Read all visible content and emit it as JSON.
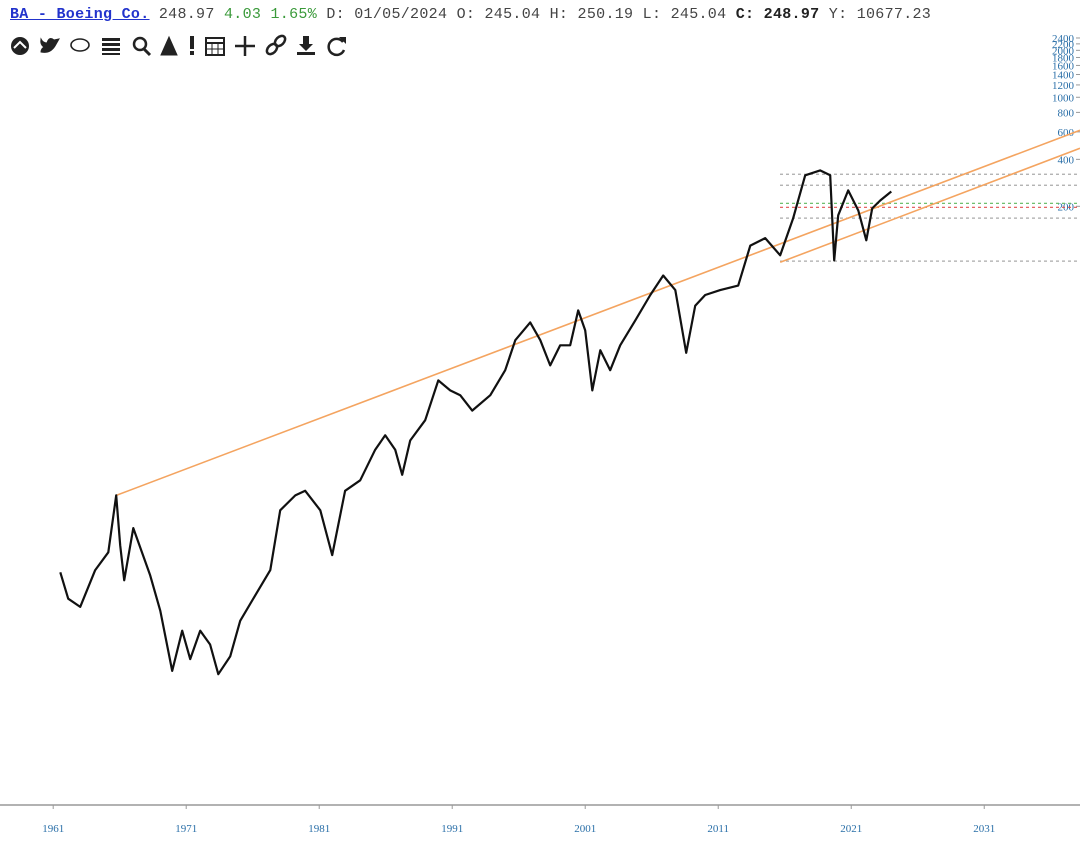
{
  "header": {
    "title": "BA - Boeing Co.",
    "price": "248.97",
    "change": "4.03",
    "change_percent": "1.65%",
    "fields": [
      {
        "label": "D:",
        "value": "01/05/2024"
      },
      {
        "label": "O:",
        "value": "245.04"
      },
      {
        "label": "H:",
        "value": "250.19"
      },
      {
        "label": "L:",
        "value": "245.04"
      },
      {
        "label": "C:",
        "value": "248.97"
      },
      {
        "label": "Y:",
        "value": "10677.23"
      }
    ]
  },
  "chart_data": {
    "type": "line",
    "log_scale_y": true,
    "xlim": [
      1957,
      2038.2
    ],
    "ylim": [
      0.029,
      2700
    ],
    "xticks": [
      1961,
      1971,
      1981,
      1991,
      2001,
      2011,
      2021,
      2031
    ],
    "yticks": [
      200,
      400,
      600,
      800,
      1000,
      1200,
      1400,
      1600,
      1800,
      2000,
      2200,
      2400
    ],
    "series": [
      {
        "color": "#111111",
        "x": [
          1961.53,
          1962.13,
          1963.03,
          1964.16,
          1965.14,
          1965.74,
          1966.04,
          1966.34,
          1967.02,
          1968.29,
          1969.05,
          1969.95,
          1970.7,
          1971.3,
          1972.05,
          1972.8,
          1973.41,
          1974.31,
          1975.06,
          1976.19,
          1977.32,
          1978.07,
          1979.2,
          1979.95,
          1981.08,
          1981.98,
          1982.95,
          1984.08,
          1985.21,
          1985.96,
          1986.71,
          1987.24,
          1987.84,
          1988.97,
          1989.95,
          1990.85,
          1991.6,
          1992.5,
          1993.86,
          1994.98,
          1995.74,
          1996.86,
          1997.62,
          1998.37,
          1999.12,
          1999.87,
          2000.47,
          2001.0,
          2001.53,
          2002.13,
          2002.88,
          2003.63,
          2004.76,
          2005.89,
          2006.86,
          2007.77,
          2008.59,
          2009.27,
          2010.02,
          2011.15,
          2012.5,
          2013.41,
          2014.53,
          2015.66,
          2016.64,
          2017.54,
          2018.66,
          2019.42,
          2019.72,
          2020.02,
          2020.77,
          2021.53,
          2022.13,
          2022.58,
          2023.18,
          2024.01
        ],
        "values": [
          0.9,
          0.61,
          0.54,
          0.93,
          1.21,
          2.8,
          1.34,
          0.8,
          1.73,
          0.86,
          0.51,
          0.21,
          0.38,
          0.25,
          0.38,
          0.31,
          0.2,
          0.26,
          0.44,
          0.64,
          0.93,
          2.25,
          2.8,
          3.0,
          2.25,
          1.16,
          3.0,
          3.5,
          5.5,
          6.8,
          5.5,
          3.8,
          6.3,
          8.5,
          15.3,
          13.2,
          12.3,
          9.8,
          12.3,
          17.8,
          27.7,
          36,
          27.7,
          19.1,
          25.7,
          25.7,
          43,
          32,
          13.2,
          23.9,
          17.8,
          25.7,
          37,
          54,
          72,
          58,
          23,
          46,
          54,
          58,
          62,
          112,
          125,
          97,
          168,
          316,
          340,
          316,
          90,
          175,
          253,
          188,
          121,
          194,
          218,
          248.97
        ]
      }
    ],
    "trendlines": [
      {
        "color": "#f4a460",
        "x": [
          1965.74,
          2038.2
        ],
        "values": [
          2.8,
          614
        ]
      },
      {
        "color": "#f4a460",
        "x": [
          2015.66,
          2038.2
        ],
        "values": [
          87.5,
          471
        ]
      }
    ],
    "levels": [
      {
        "value": 321,
        "color": "#aaaaaa"
      },
      {
        "value": 273,
        "color": "#aaaaaa"
      },
      {
        "value": 209,
        "color": "#5cb85c"
      },
      {
        "value": 197,
        "color": "#e05050"
      },
      {
        "value": 168,
        "color": "#aaaaaa"
      },
      {
        "value": 89,
        "color": "#aaaaaa"
      }
    ]
  }
}
